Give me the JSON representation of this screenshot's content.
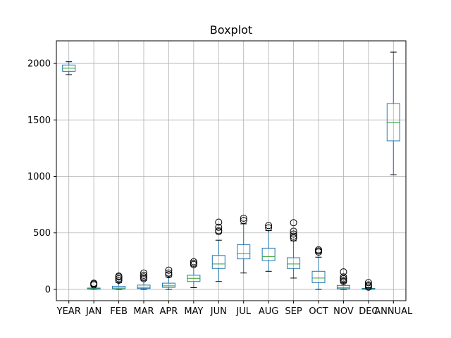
{
  "chart_data": {
    "type": "boxplot",
    "title": "Boxplot",
    "xlabel": "",
    "ylabel": "",
    "grid": true,
    "ylim": [
      -100,
      2200
    ],
    "yticks": [
      0,
      500,
      1000,
      1500,
      2000
    ],
    "categories": [
      "YEAR",
      "JAN",
      "FEB",
      "MAR",
      "APR",
      "MAY",
      "JUN",
      "JUL",
      "AUG",
      "SEP",
      "OCT",
      "NOV",
      "DEC",
      "ANNUAL"
    ],
    "boxes": [
      {
        "label": "YEAR",
        "whisker_low": 1901,
        "q1": 1930,
        "median": 1958,
        "q3": 1986,
        "whisker_high": 2015,
        "outliers": []
      },
      {
        "label": "JAN",
        "whisker_low": 0,
        "q1": 2,
        "median": 5,
        "q3": 12,
        "whisker_high": 28,
        "outliers": [
          40,
          48,
          55
        ]
      },
      {
        "label": "FEB",
        "whisker_low": 0,
        "q1": 4,
        "median": 12,
        "q3": 28,
        "whisker_high": 60,
        "outliers": [
          80,
          95,
          110,
          118
        ]
      },
      {
        "label": "MAR",
        "whisker_low": 0,
        "q1": 8,
        "median": 18,
        "q3": 38,
        "whisker_high": 80,
        "outliers": [
          95,
          110,
          125,
          145
        ]
      },
      {
        "label": "APR",
        "whisker_low": 0,
        "q1": 18,
        "median": 32,
        "q3": 55,
        "whisker_high": 110,
        "outliers": [
          130,
          145,
          170
        ]
      },
      {
        "label": "MAY",
        "whisker_low": 15,
        "q1": 70,
        "median": 98,
        "q3": 125,
        "whisker_high": 205,
        "outliers": [
          220,
          232,
          245
        ]
      },
      {
        "label": "JUN",
        "whisker_low": 70,
        "q1": 185,
        "median": 225,
        "q3": 300,
        "whisker_high": 435,
        "outliers": [
          510,
          520,
          550,
          595
        ]
      },
      {
        "label": "JUL",
        "whisker_low": 145,
        "q1": 270,
        "median": 315,
        "q3": 395,
        "whisker_high": 580,
        "outliers": [
          610,
          630
        ]
      },
      {
        "label": "AUG",
        "whisker_low": 160,
        "q1": 255,
        "median": 290,
        "q3": 365,
        "whisker_high": 520,
        "outliers": [
          545,
          565
        ]
      },
      {
        "label": "SEP",
        "whisker_low": 100,
        "q1": 185,
        "median": 225,
        "q3": 280,
        "whisker_high": 430,
        "outliers": [
          455,
          470,
          490,
          515,
          590
        ]
      },
      {
        "label": "OCT",
        "whisker_low": 0,
        "q1": 60,
        "median": 100,
        "q3": 160,
        "whisker_high": 285,
        "outliers": [
          330,
          340,
          350
        ]
      },
      {
        "label": "NOV",
        "whisker_low": 0,
        "q1": 5,
        "median": 14,
        "q3": 35,
        "whisker_high": 60,
        "outliers": [
          70,
          80,
          95,
          110,
          155
        ]
      },
      {
        "label": "DEC",
        "whisker_low": 0,
        "q1": 1,
        "median": 4,
        "q3": 9,
        "whisker_high": 15,
        "outliers": [
          20,
          30,
          40,
          60
        ]
      },
      {
        "label": "ANNUAL",
        "whisker_low": 1015,
        "q1": 1315,
        "median": 1480,
        "q3": 1645,
        "whisker_high": 2100,
        "outliers": []
      }
    ],
    "colors": {
      "box": "#1f77b4",
      "median": "#2ca02c",
      "whisker": "#000000",
      "grid": "#b0b0b0",
      "axes": "#000000"
    }
  }
}
